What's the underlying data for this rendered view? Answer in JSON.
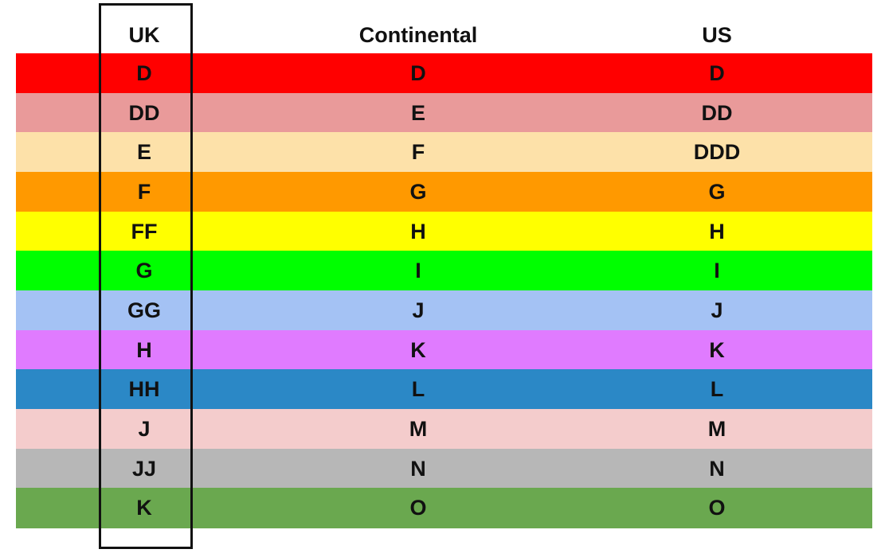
{
  "table": {
    "header": [
      "UK",
      "Continental",
      "US"
    ],
    "rows": [
      [
        "D",
        "D",
        "D"
      ],
      [
        "DD",
        "E",
        "DD"
      ],
      [
        "E",
        "F",
        "DDD"
      ],
      [
        "F",
        "G",
        "G"
      ],
      [
        "FF",
        "H",
        "H"
      ],
      [
        "G",
        "I",
        "I"
      ],
      [
        "GG",
        "J",
        "J"
      ],
      [
        "H",
        "K",
        "K"
      ],
      [
        "HH",
        "L",
        "L"
      ],
      [
        "J",
        "M",
        "M"
      ],
      [
        "JJ",
        "N",
        "N"
      ],
      [
        "K",
        "O",
        "O"
      ]
    ]
  }
}
